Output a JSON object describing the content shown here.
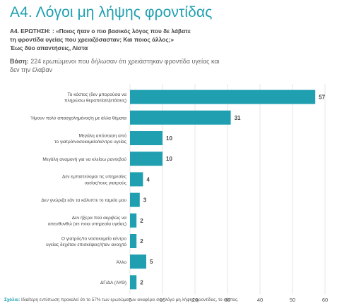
{
  "title": "Α4. Λόγοι μη λήψης φροντίδας",
  "question": {
    "line1": "Α4. ΕΡΩΤΗΣΗ: : «Ποιος ήταν ο πιο βασικός λόγος που δε λάβατε",
    "line2": "τη φροντίδα υγείας που χρειαζόσασταν; Και ποιος άλλος;»",
    "line3": "Έως δύο απαντήσεις, Λίστα"
  },
  "base": {
    "label": "Βάση:",
    "text": "224 ερωτώμενοι που δήλωσαν ότι χρειάστηκαν φροντίδα υγείας και δεν την έλαβαν"
  },
  "comment": {
    "label": "Σχόλιο:",
    "text": "Ιδιαίτερη εντύπωση προκαλεί ότι το 57% των ερωτώμενων αναφέρει σαν λόγο μη λήψης φροντίδας, το κόστος."
  },
  "colors": {
    "bar": "#1f9fb0",
    "title": "#1f9fb0",
    "grid": "#e4e4e4"
  },
  "chart_data": {
    "type": "bar",
    "orientation": "horizontal",
    "categories": [
      [
        "Το κόστος (δεν μπορούσα να",
        "πληρώσω θεραπεία/εξετάσεις)"
      ],
      [
        "Ήμουν πολύ απασχολημένος/η με άλλα θέματα"
      ],
      [
        "Μεγάλη απόσταση από",
        "το γιατρό/νοσοκομείο/κέντρο υγείας"
      ],
      [
        "Μεγάλη αναμονή για να κλείσω ραντεβού"
      ],
      [
        "Δεν εμπιστεύομαι τις υπηρεσίες",
        "υγείας/τους γιατρούς"
      ],
      [
        "Δεν γνώριζα εάν τα κάλυπτε το ταμείο μου"
      ],
      [
        "Δεν ήξερα πού ακριβώς να",
        "απευθυνθώ (σε ποια υπηρεσία υγείας)"
      ],
      [
        "Ο γιατρός/το νοσοκομείο κέντρο",
        "υγείας δεχόταν επισκέψεις/ήταν ανοιχτό"
      ],
      [
        "Άλλο"
      ],
      [
        "ΔΓ/ΔΑ (ΑΥΘ)"
      ]
    ],
    "values": [
      57,
      31,
      10,
      10,
      4,
      3,
      2,
      2,
      5,
      2
    ],
    "xlim": [
      0,
      60
    ],
    "xticks": [
      0,
      10,
      20,
      30,
      40,
      50,
      60
    ],
    "grid": true
  }
}
